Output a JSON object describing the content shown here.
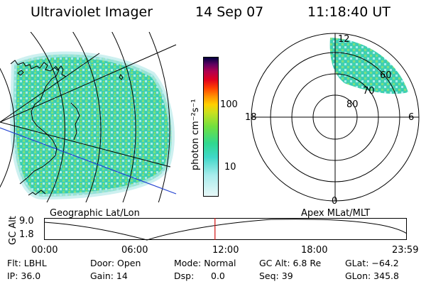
{
  "header": {
    "instrument": "Ultraviolet Imager",
    "date": "14 Sep 07",
    "time": "11:18:40 UT"
  },
  "colorbar": {
    "label": "photon cm⁻²s⁻¹",
    "ticks": [
      "100",
      "10"
    ]
  },
  "polar_plot": {
    "mlt_labels": {
      "top": "12",
      "bottom": "0",
      "left": "18",
      "right": "6"
    },
    "lat_labels": [
      "60",
      "70",
      "80"
    ]
  },
  "panel_labels": {
    "left": "Geographic Lat/Lon",
    "right": "Apex MLat/MLT"
  },
  "altitude_plot": {
    "ylabel": "GC Alt",
    "yticks": [
      "9.0",
      "1.8"
    ],
    "xticks": [
      "00:00",
      "06:00",
      "12:00",
      "18:00",
      "23:59"
    ],
    "marker_hour": 11.31,
    "marker_color": "#d01010"
  },
  "info": {
    "filter": "Flt: LBHL",
    "ip": "IP: 36.0",
    "door": "Door: Open",
    "gain": "Gain: 14",
    "mode": "Mode: Normal",
    "dsp": "Dsp:",
    "dsp_value": "0.0",
    "gc_alt": "GC Alt: 6.8 Re",
    "seq": "Seq: 39",
    "glat": "GLat: −64.2",
    "glon": "GLon: 345.8"
  },
  "colors": {
    "emission_low": "#a8e8e8",
    "emission_mid": "#40d8b0",
    "emission_high": "#80e040",
    "coast": "#000000",
    "track": "#2040d0"
  }
}
